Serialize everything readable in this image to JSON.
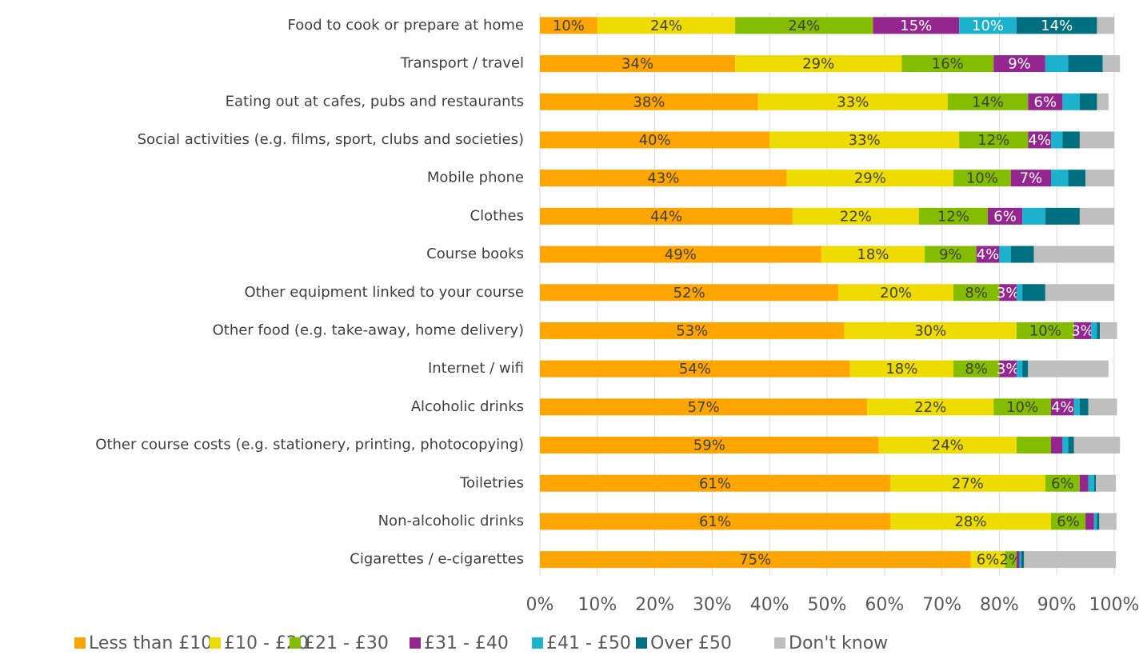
{
  "chart_data": {
    "type": "stacked_bar_horizontal",
    "categories": [
      "Food to cook or prepare at home",
      "Transport / travel",
      "Eating out at cafes, pubs and restaurants",
      "Social activities (e.g. films, sport, clubs and societies)",
      "Mobile phone",
      "Clothes",
      "Course books",
      "Other equipment linked to your course",
      "Other food (e.g. take-away, home delivery)",
      "Internet / wifi",
      "Alcoholic drinks",
      "Other course costs (e.g. stationery, printing, photocopying)",
      "Toiletries",
      "Non-alcoholic drinks",
      "Cigarettes / e-cigarettes"
    ],
    "series": [
      {
        "name": "Less than £10",
        "color": "#FFA500",
        "label_color": "#404040",
        "values": [
          10,
          34,
          38,
          40,
          43,
          44,
          49,
          52,
          53,
          54,
          57,
          59,
          61,
          61,
          75
        ],
        "value_labels": [
          "10%",
          "34%",
          "38%",
          "40%",
          "43%",
          "44%",
          "49%",
          "52%",
          "53%",
          "54%",
          "57%",
          "59%",
          "61%",
          "61%",
          "75%"
        ]
      },
      {
        "name": "£10 - £20",
        "color": "#EEDC00",
        "label_color": "#404040",
        "values": [
          24,
          29,
          33,
          33,
          29,
          22,
          18,
          20,
          30,
          18,
          22,
          24,
          27,
          28,
          6
        ],
        "value_labels": [
          "24%",
          "29%",
          "33%",
          "33%",
          "29%",
          "22%",
          "18%",
          "20%",
          "30%",
          "18%",
          "22%",
          "24%",
          "27%",
          "28%",
          "6%"
        ]
      },
      {
        "name": "£21 - £30",
        "color": "#84BD00",
        "label_color": "#404040",
        "values": [
          24,
          16,
          14,
          12,
          10,
          12,
          9,
          8,
          10,
          8,
          10,
          6,
          6,
          6,
          2
        ],
        "value_labels": [
          "24%",
          "16%",
          "14%",
          "12%",
          "10%",
          "12%",
          "9%",
          "8%",
          "10%",
          "8%",
          "10%",
          null,
          "6%",
          "6%",
          "2%"
        ]
      },
      {
        "name": "£31 - £40",
        "color": "#93278F",
        "label_color": "#ffffff",
        "values": [
          15,
          9,
          6,
          4,
          7,
          6,
          4,
          3,
          3,
          3,
          4,
          2,
          1.5,
          1.5,
          0.5
        ],
        "value_labels": [
          "15%",
          "9%",
          "6%",
          "4%",
          "7%",
          "6%",
          "4%",
          "3%",
          "3%",
          "3%",
          "4%",
          null,
          null,
          null,
          null
        ]
      },
      {
        "name": "£41 - £50",
        "color": "#1CB1CC",
        "label_color": "#ffffff",
        "values": [
          10,
          4,
          3,
          2,
          3,
          4,
          2,
          1,
          1,
          1,
          1,
          1,
          1,
          0.5,
          0.3
        ],
        "value_labels": [
          "10%",
          null,
          null,
          null,
          null,
          null,
          null,
          null,
          null,
          null,
          null,
          null,
          null,
          null,
          null
        ]
      },
      {
        "name": "Over £50",
        "color": "#006F7F",
        "label_color": "#ffffff",
        "values": [
          14,
          6,
          3,
          3,
          3,
          6,
          4,
          4,
          0.5,
          1,
          1.5,
          1,
          0.3,
          0.4,
          0.5
        ],
        "value_labels": [
          "14%",
          null,
          null,
          null,
          null,
          null,
          null,
          null,
          null,
          null,
          null,
          null,
          null,
          null,
          null
        ]
      },
      {
        "name": "Don't know",
        "color": "#BFBFBF",
        "values": [
          3,
          3,
          2,
          6,
          5,
          6,
          14,
          12,
          3,
          14,
          5,
          8,
          3.5,
          3,
          16
        ]
      }
    ],
    "xlim": [
      0,
      100
    ],
    "xticks": [
      {
        "value": 0,
        "label": "0%"
      },
      {
        "value": 10,
        "label": "10%"
      },
      {
        "value": 20,
        "label": "20%"
      },
      {
        "value": 30,
        "label": "30%"
      },
      {
        "value": 40,
        "label": "40%"
      },
      {
        "value": 50,
        "label": "50%"
      },
      {
        "value": 60,
        "label": "60%"
      },
      {
        "value": 70,
        "label": "70%"
      },
      {
        "value": 80,
        "label": "80%"
      },
      {
        "value": 90,
        "label": "90%"
      },
      {
        "value": 100,
        "label": "100%"
      }
    ],
    "grid": true,
    "legend": "bottom"
  }
}
